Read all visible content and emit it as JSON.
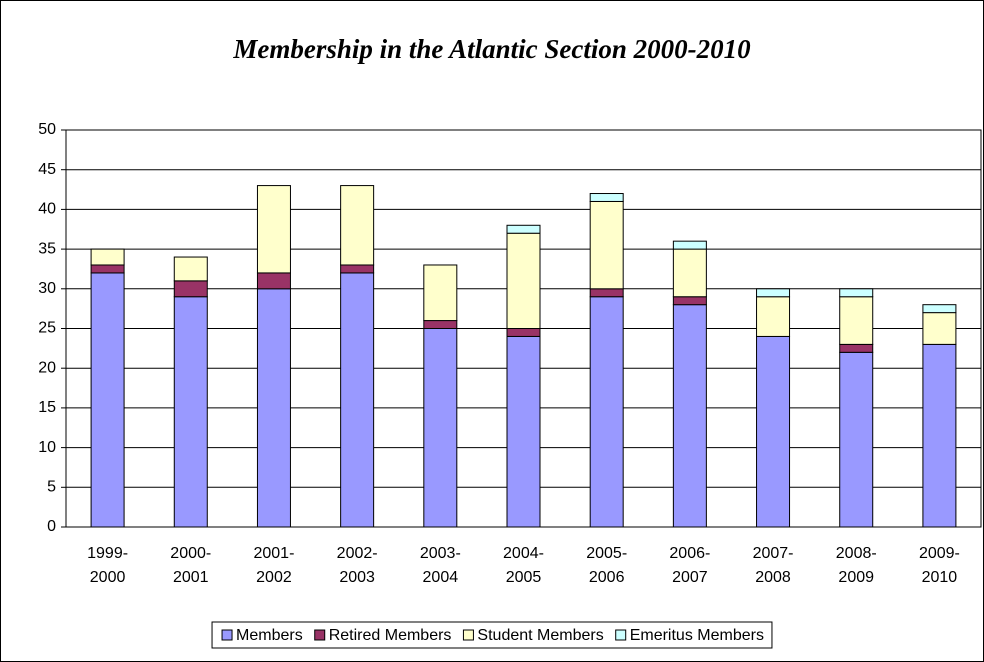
{
  "chart_data": {
    "type": "bar",
    "stacked": true,
    "title": "Membership in the Atlantic Section 2000-2010",
    "categories": [
      "1999-2000",
      "2000-2001",
      "2001-2002",
      "2002-2003",
      "2003-2004",
      "2004-2005",
      "2005-2006",
      "2006-2007",
      "2007-2008",
      "2008-2009",
      "2009-2010"
    ],
    "series": [
      {
        "name": "Members",
        "color": "#9999ff",
        "values": [
          32,
          29,
          30,
          32,
          25,
          24,
          29,
          28,
          24,
          22,
          23
        ]
      },
      {
        "name": "Retired Members",
        "color": "#993366",
        "values": [
          1,
          2,
          2,
          1,
          1,
          1,
          1,
          1,
          0,
          1,
          0
        ]
      },
      {
        "name": "Student Members",
        "color": "#ffffcc",
        "values": [
          2,
          3,
          11,
          10,
          7,
          12,
          11,
          6,
          5,
          6,
          4
        ]
      },
      {
        "name": "Emeritus Members",
        "color": "#ccffff",
        "values": [
          0,
          0,
          0,
          0,
          0,
          1,
          1,
          1,
          1,
          1,
          1
        ]
      }
    ],
    "ylim": [
      0,
      50
    ],
    "yticks": [
      0,
      5,
      10,
      15,
      20,
      25,
      30,
      35,
      40,
      45,
      50
    ],
    "grid": true,
    "legend": "bottom"
  }
}
